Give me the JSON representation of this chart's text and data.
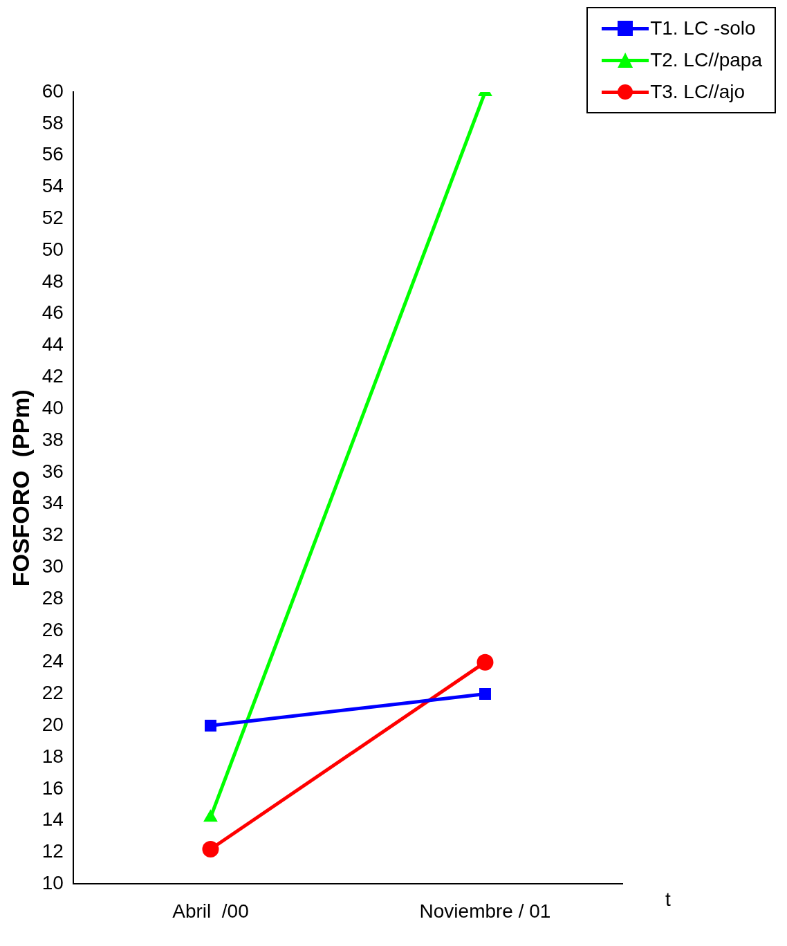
{
  "chart_data": {
    "type": "line",
    "ylabel": "FOSFORO  (PPm)",
    "xlabel": "t",
    "categories": [
      "Abril  /00",
      "Noviembre / 01"
    ],
    "series": [
      {
        "name": "T1. LC -solo",
        "color": "#0000ff",
        "values": [
          20,
          22
        ],
        "marker": "square"
      },
      {
        "name": "T2. LC//papa",
        "color": "#00ff00",
        "values": [
          14.2,
          60
        ],
        "marker": "triangle"
      },
      {
        "name": "T3. LC//ajo",
        "color": "#ff0000",
        "values": [
          12.2,
          24
        ],
        "marker": "circle"
      }
    ],
    "ylim": [
      10,
      60
    ],
    "yticks": [
      10,
      12,
      14,
      16,
      18,
      20,
      22,
      24,
      26,
      28,
      30,
      32,
      34,
      36,
      38,
      40,
      42,
      44,
      46,
      48,
      50,
      52,
      54,
      56,
      58,
      60
    ],
    "grid": false,
    "legend": "top right",
    "line_style": "solid"
  }
}
